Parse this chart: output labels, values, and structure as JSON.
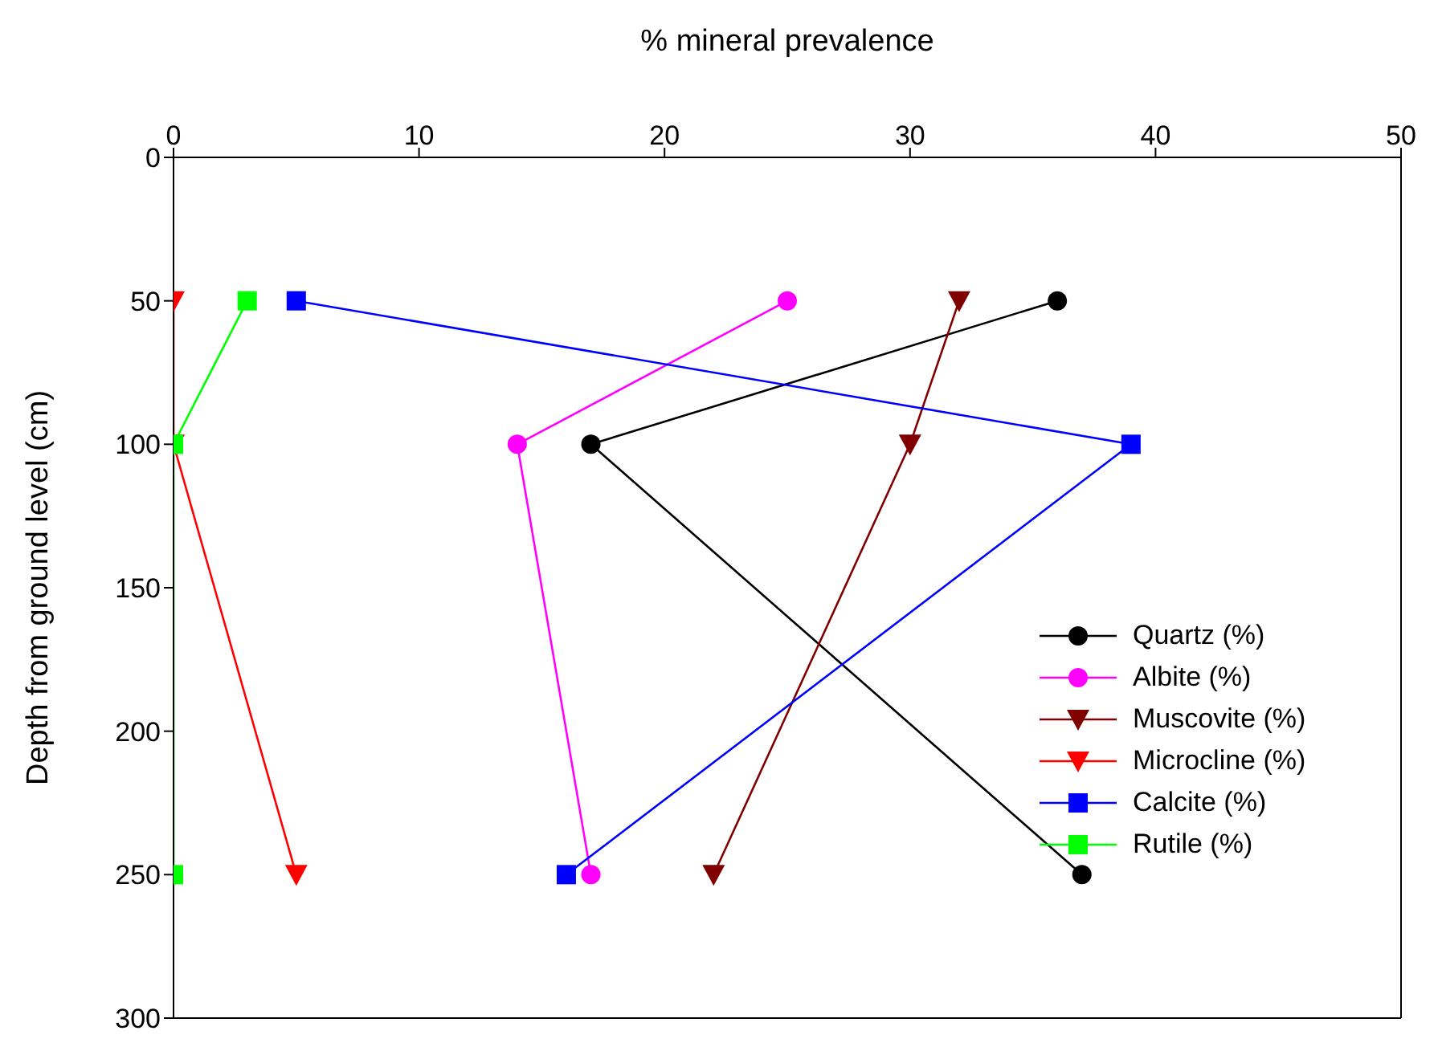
{
  "chart_data": {
    "type": "line",
    "xlabel": "% mineral prevalence",
    "ylabel": "Depth from ground level (cm)",
    "xlim": [
      0,
      50
    ],
    "xticks": [
      0,
      10,
      20,
      30,
      40,
      50
    ],
    "ylim": [
      300,
      0
    ],
    "yticks": [
      0,
      50,
      100,
      150,
      200,
      250,
      300
    ],
    "legend": "right",
    "series": [
      {
        "name": "Quartz (%)",
        "color": "#000000",
        "marker": "circle",
        "x": [
          36,
          17,
          37
        ],
        "values": [
          50,
          100,
          250
        ]
      },
      {
        "name": "Albite (%)",
        "color": "#ff00ff",
        "marker": "circle",
        "x": [
          25,
          14,
          17
        ],
        "values": [
          50,
          100,
          250
        ]
      },
      {
        "name": "Muscovite (%)",
        "color": "#800000",
        "marker": "triangle",
        "x": [
          32,
          30,
          22
        ],
        "values": [
          50,
          100,
          250
        ]
      },
      {
        "name": "Microcline (%)",
        "color": "#ff0000",
        "marker": "triangle",
        "x": [
          0,
          0,
          5
        ],
        "values": [
          50,
          100,
          250
        ]
      },
      {
        "name": "Calcite (%)",
        "color": "#0000ff",
        "marker": "square",
        "x": [
          5,
          39,
          16
        ],
        "values": [
          50,
          100,
          250
        ]
      },
      {
        "name": "Rutile (%)",
        "color": "#00ff00",
        "marker": "square",
        "x": [
          3,
          0,
          0
        ],
        "values": [
          50,
          100,
          250
        ]
      }
    ]
  }
}
